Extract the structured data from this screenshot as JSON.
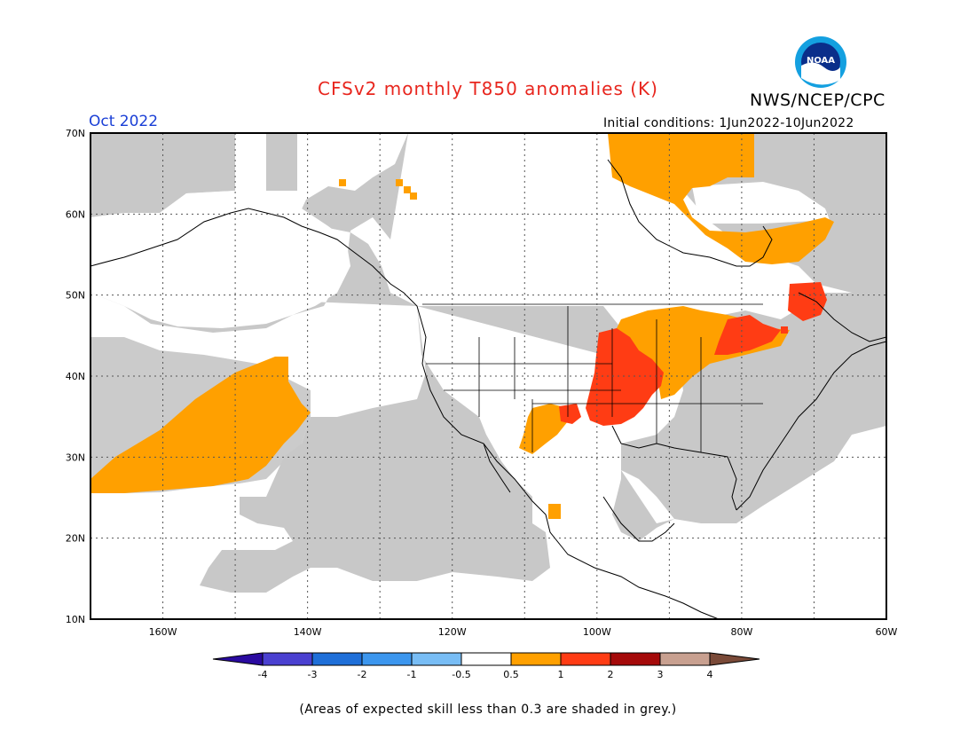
{
  "header": {
    "title": "CFSv2 monthly T850 anomalies (K)",
    "agency": "NWS/NCEP/CPC",
    "month": "Oct 2022",
    "initial_conditions": "Initial conditions: 1Jun2022-10Jun2022",
    "logo_text": "NOAA"
  },
  "map": {
    "lon_range": [
      -170,
      -60
    ],
    "lat_range": [
      10,
      70
    ],
    "lat_labels": [
      "70N",
      "60N",
      "50N",
      "40N",
      "30N",
      "20N",
      "10N"
    ],
    "lon_labels": [
      "160W",
      "140W",
      "120W",
      "100W",
      "80W",
      "60W"
    ],
    "skill_shading_color": "#c8c8c8"
  },
  "colorbar": {
    "tick_labels": [
      "-4",
      "-3",
      "-2",
      "-1",
      "-0.5",
      "0.5",
      "1",
      "2",
      "3",
      "4"
    ],
    "colors": [
      "#2a0aa0",
      "#4a40d0",
      "#1f6fd8",
      "#3c96ee",
      "#78bdf5",
      "#ffffff",
      "#ffa000",
      "#ff3c14",
      "#a50a0a",
      "#c8a090",
      "#7a4a38"
    ]
  },
  "footer": {
    "note": "(Areas of expected skill less than 0.3 are shaded in grey.)"
  }
}
